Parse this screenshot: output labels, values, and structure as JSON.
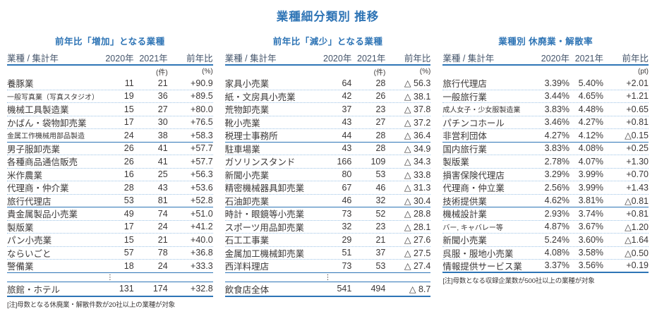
{
  "title": "業種細分類別  推移",
  "colors": {
    "accent_blue": "#2E74B5",
    "rule_blue": "#2E75B6",
    "dotted_rule_blue": "#9DC3E6",
    "header_text": "#44546A",
    "body_text": "#3B3838"
  },
  "ellipsis_glyph": "⋮",
  "tables": [
    {
      "subtitle": "前年比「増加」となる業種",
      "columns": [
        "業種 / 集計年",
        "2020年",
        "2021年",
        "前年比"
      ],
      "units": [
        "",
        "",
        "(件)",
        "(%)"
      ],
      "rows": [
        {
          "name": "養豚業",
          "v2020": "11",
          "v2021": "21",
          "yoy": "+90.9"
        },
        {
          "name": "一般写真業（写真スタジオ）",
          "v2020": "19",
          "v2021": "36",
          "yoy": "+89.5"
        },
        {
          "name": "機械工具製造業",
          "v2020": "15",
          "v2021": "27",
          "yoy": "+80.0"
        },
        {
          "name": "かばん・袋物卸売業",
          "v2020": "17",
          "v2021": "30",
          "yoy": "+76.5"
        },
        {
          "name": "金属工作機械用部品製造",
          "v2020": "24",
          "v2021": "38",
          "yoy": "+58.3"
        },
        {
          "name": "男子服卸売業",
          "v2020": "26",
          "v2021": "41",
          "yoy": "+57.7"
        },
        {
          "name": "各種商品通信販売",
          "v2020": "26",
          "v2021": "41",
          "yoy": "+57.7"
        },
        {
          "name": "米作農業",
          "v2020": "16",
          "v2021": "25",
          "yoy": "+56.3"
        },
        {
          "name": "代理商・仲介業",
          "v2020": "28",
          "v2021": "43",
          "yoy": "+53.6"
        },
        {
          "name": "旅行代理店",
          "v2020": "53",
          "v2021": "81",
          "yoy": "+52.8"
        },
        {
          "name": "貴金属製品小売業",
          "v2020": "49",
          "v2021": "74",
          "yoy": "+51.0"
        },
        {
          "name": "製版業",
          "v2020": "17",
          "v2021": "24",
          "yoy": "+41.2"
        },
        {
          "name": "パン小売業",
          "v2020": "15",
          "v2021": "21",
          "yoy": "+40.0"
        },
        {
          "name": "ならいごと",
          "v2020": "57",
          "v2021": "78",
          "yoy": "+36.8"
        },
        {
          "name": "警備業",
          "v2020": "18",
          "v2021": "24",
          "yoy": "+33.3"
        }
      ],
      "total": {
        "name": "旅館・ホテル",
        "v2020": "131",
        "v2021": "174",
        "yoy": "+32.8"
      },
      "note": "[注]母数となる休廃業・解散件数が20社以上の業種が対象"
    },
    {
      "subtitle": "前年比「減少」となる業種",
      "columns": [
        "業種 / 集計年",
        "2020年",
        "2021年",
        "前年比"
      ],
      "units": [
        "",
        "",
        "(件)",
        "(%)"
      ],
      "rows": [
        {
          "name": "家具小売業",
          "v2020": "64",
          "v2021": "28",
          "yoy": "△ 56.3"
        },
        {
          "name": "紙・文房具小売業",
          "v2020": "42",
          "v2021": "26",
          "yoy": "△ 38.1"
        },
        {
          "name": "荒物卸売業",
          "v2020": "37",
          "v2021": "23",
          "yoy": "△ 37.8"
        },
        {
          "name": "靴小売業",
          "v2020": "43",
          "v2021": "27",
          "yoy": "△ 37.2"
        },
        {
          "name": "税理士事務所",
          "v2020": "44",
          "v2021": "28",
          "yoy": "△ 36.4"
        },
        {
          "name": "駐車場業",
          "v2020": "43",
          "v2021": "28",
          "yoy": "△ 34.9"
        },
        {
          "name": "ガソリンスタンド",
          "v2020": "166",
          "v2021": "109",
          "yoy": "△ 34.3"
        },
        {
          "name": "新聞小売業",
          "v2020": "80",
          "v2021": "53",
          "yoy": "△ 33.8"
        },
        {
          "name": "精密機械器具卸売業",
          "v2020": "67",
          "v2021": "46",
          "yoy": "△ 31.3"
        },
        {
          "name": "石油卸売業",
          "v2020": "46",
          "v2021": "32",
          "yoy": "△ 30.4"
        },
        {
          "name": "時計・眼鏡等小売業",
          "v2020": "73",
          "v2021": "52",
          "yoy": "△ 28.8"
        },
        {
          "name": "スポーツ用品卸売業",
          "v2020": "32",
          "v2021": "23",
          "yoy": "△ 28.1"
        },
        {
          "name": "石工工事業",
          "v2020": "29",
          "v2021": "21",
          "yoy": "△ 27.6"
        },
        {
          "name": "金属加工機械卸売業",
          "v2020": "51",
          "v2021": "37",
          "yoy": "△ 27.5"
        },
        {
          "name": "西洋料理店",
          "v2020": "73",
          "v2021": "53",
          "yoy": "△ 27.4"
        }
      ],
      "total": {
        "name": "飲食店全体",
        "v2020": "541",
        "v2021": "494",
        "yoy": "△ 8.7"
      }
    },
    {
      "subtitle": "業種別 休廃業・解散率",
      "columns": [
        "業種 / 集計年",
        "2020年",
        "2021年",
        "前年比"
      ],
      "units": [
        "",
        "",
        "",
        "(pt)"
      ],
      "rows": [
        {
          "name": "旅行代理店",
          "v2020": "3.39%",
          "v2021": "5.40%",
          "yoy": "+2.01"
        },
        {
          "name": "一般旅行業",
          "v2020": "3.44%",
          "v2021": "4.65%",
          "yoy": "+1.21"
        },
        {
          "name": "成人女子・少女服製造業",
          "v2020": "3.83%",
          "v2021": "4.48%",
          "yoy": "+0.65"
        },
        {
          "name": "パチンコホール",
          "v2020": "3.46%",
          "v2021": "4.27%",
          "yoy": "+0.81"
        },
        {
          "name": "非営利団体",
          "v2020": "4.27%",
          "v2021": "4.12%",
          "yoy": "△0.15"
        },
        {
          "name": "国内旅行業",
          "v2020": "3.83%",
          "v2021": "4.08%",
          "yoy": "+0.25"
        },
        {
          "name": "製版業",
          "v2020": "2.78%",
          "v2021": "4.07%",
          "yoy": "+1.30"
        },
        {
          "name": "損害保険代理店",
          "v2020": "3.29%",
          "v2021": "3.99%",
          "yoy": "+0.70"
        },
        {
          "name": "代理商・仲立業",
          "v2020": "2.56%",
          "v2021": "3.99%",
          "yoy": "+1.43"
        },
        {
          "name": "技術提供業",
          "v2020": "4.62%",
          "v2021": "3.81%",
          "yoy": "△0.81"
        },
        {
          "name": "機械設計業",
          "v2020": "2.93%",
          "v2021": "3.74%",
          "yoy": "+0.81"
        },
        {
          "name": "バー, キャバレー等",
          "v2020": "4.87%",
          "v2021": "3.67%",
          "yoy": "△1.20"
        },
        {
          "name": "新聞小売業",
          "v2020": "5.24%",
          "v2021": "3.60%",
          "yoy": "△1.64"
        },
        {
          "name": "呉服・服地小売業",
          "v2020": "4.08%",
          "v2021": "3.58%",
          "yoy": "△0.50"
        },
        {
          "name": "情報提供サービス業",
          "v2020": "3.37%",
          "v2021": "3.56%",
          "yoy": "+0.19"
        }
      ],
      "note": "[注]母数となる収録企業数が500社以上の業種が対象"
    }
  ]
}
